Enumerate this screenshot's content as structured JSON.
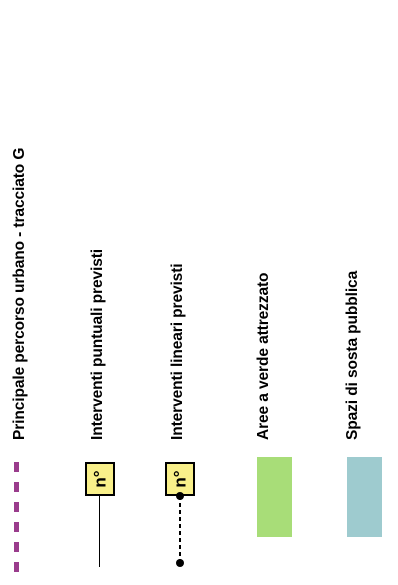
{
  "legend": {
    "percorso": {
      "label": "Principale percorso urbano - tracciato G",
      "color": "#9a3c8c",
      "icon": "dashed-route-line-icon"
    },
    "puntuali": {
      "label": "Interventi puntuali previsti",
      "marker_text": "n°",
      "marker_color": "#f9f08a",
      "icon": "point-marker-icon"
    },
    "lineari": {
      "label": "Interventi lineari previsti",
      "marker_text": "n°",
      "marker_color": "#f9f08a",
      "icon": "linear-marker-icon"
    },
    "verde": {
      "label": "Aree a verde attrezzato",
      "color": "#a8dd78",
      "icon": "green-area-swatch-icon"
    },
    "sosta": {
      "label": "Spazi di sosta pubblica",
      "color": "#9ecbcf",
      "icon": "parking-area-swatch-icon"
    }
  }
}
